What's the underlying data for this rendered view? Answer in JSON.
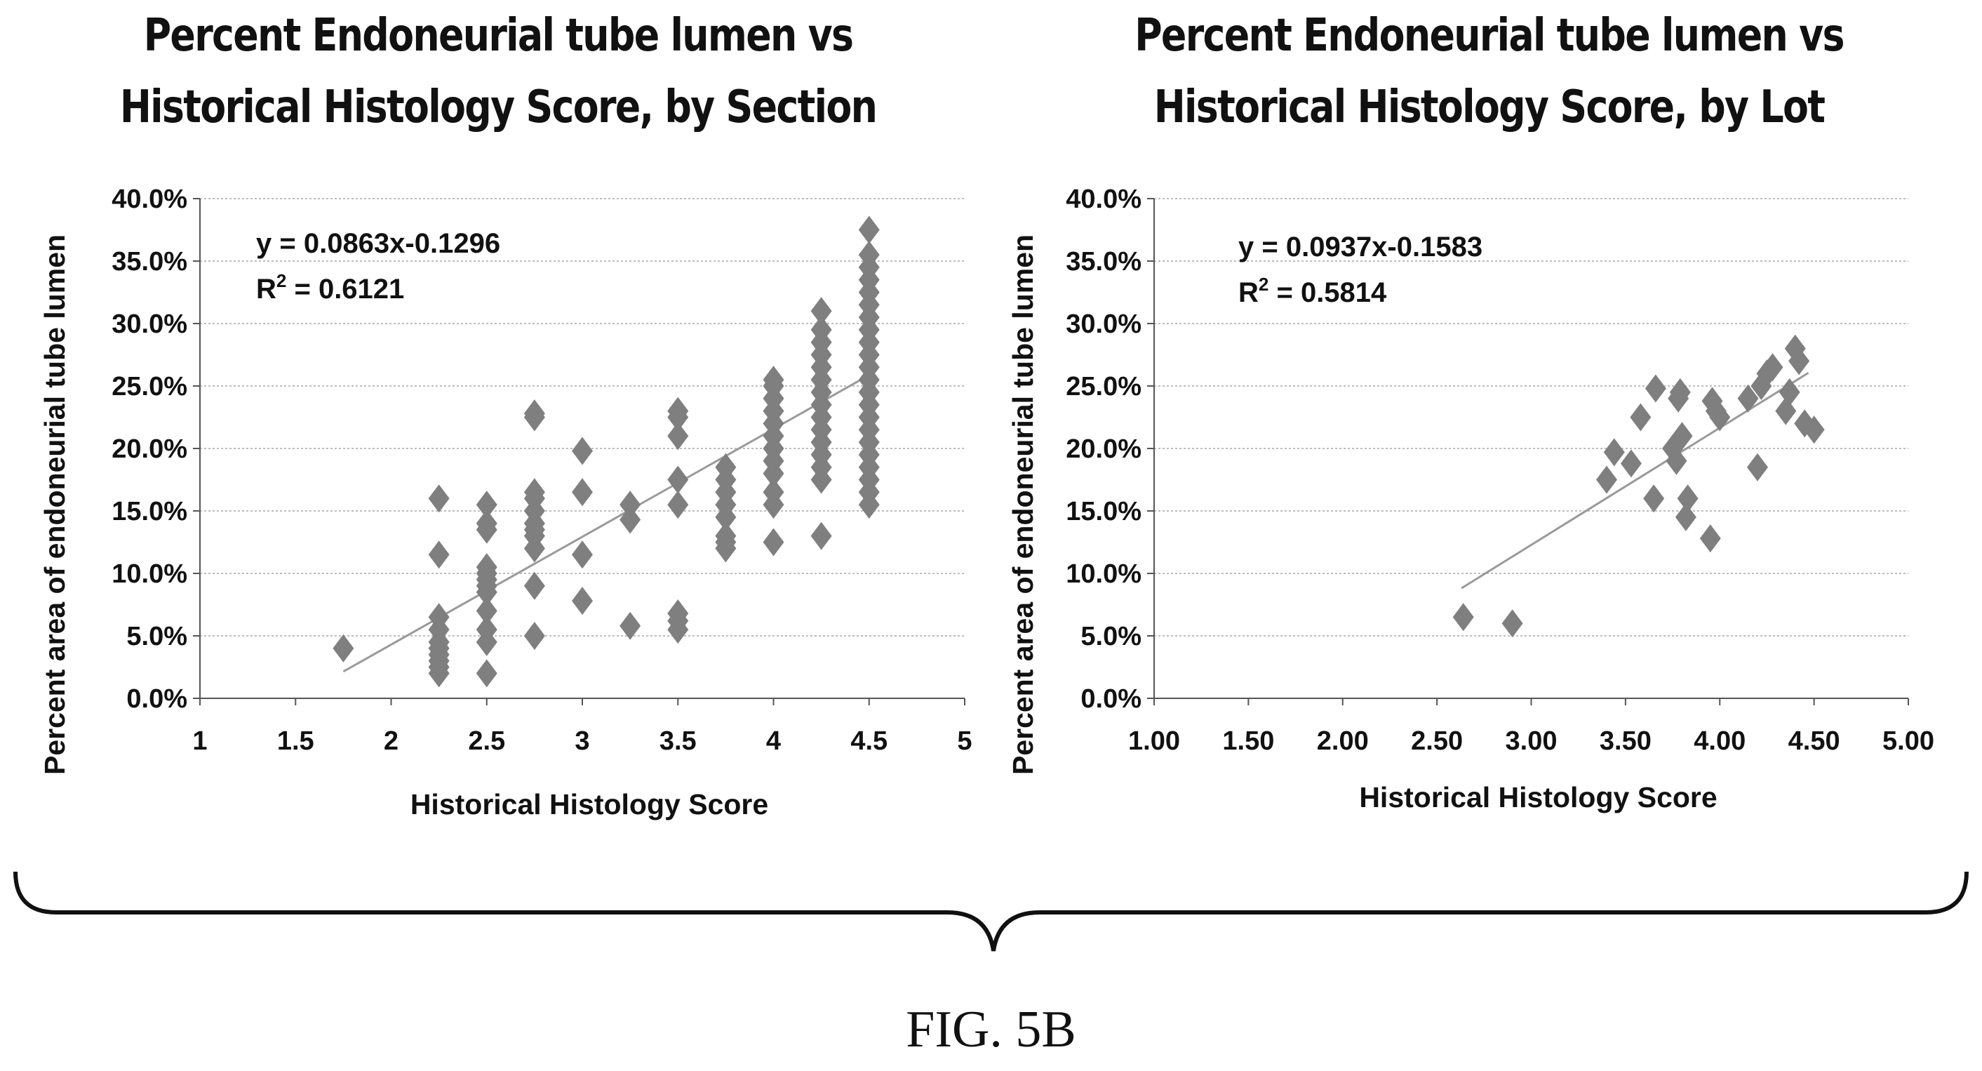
{
  "figure_label": "FIG. 5B",
  "colors": {
    "marker": "#7f7f7f",
    "trendline": "#9a9a9a",
    "grid": "#bdbdbd",
    "axis": "#555555",
    "text": "#111111"
  },
  "chart_data": [
    {
      "type": "scatter",
      "title_lines": [
        "Percent Endoneurial tube lumen vs",
        "Historical Histology Score, by Section"
      ],
      "xlabel": "Historical Histology Score",
      "ylabel": "Percent area of endoneurial tube lumen",
      "xlim": [
        1,
        5
      ],
      "ylim": [
        0,
        0.4
      ],
      "x_ticks": [
        1,
        1.5,
        2,
        2.5,
        3,
        3.5,
        4,
        4.5,
        5
      ],
      "x_tick_labels": [
        "1",
        "1.5",
        "2",
        "2.5",
        "3",
        "3.5",
        "4",
        "4.5",
        "5"
      ],
      "y_ticks": [
        0,
        0.05,
        0.1,
        0.15,
        0.2,
        0.25,
        0.3,
        0.35,
        0.4
      ],
      "y_tick_labels": [
        "0.0%",
        "5.0%",
        "10.0%",
        "15.0%",
        "20.0%",
        "25.0%",
        "30.0%",
        "35.0%",
        "40.0%"
      ],
      "grid": "horizontal",
      "equation": "y = 0.0863x-0.1296",
      "r2_prefix": "R",
      "r2_sup": "2",
      "r2_value": " = 0.6121",
      "trendline": {
        "slope": 0.0863,
        "intercept": -0.1296,
        "x_range": [
          1.75,
          4.5
        ]
      },
      "points": [
        [
          1.75,
          0.04
        ],
        [
          2.25,
          0.02
        ],
        [
          2.25,
          0.025
        ],
        [
          2.25,
          0.03
        ],
        [
          2.25,
          0.035
        ],
        [
          2.25,
          0.04
        ],
        [
          2.25,
          0.045
        ],
        [
          2.25,
          0.055
        ],
        [
          2.25,
          0.065
        ],
        [
          2.25,
          0.115
        ],
        [
          2.25,
          0.16
        ],
        [
          2.5,
          0.02
        ],
        [
          2.5,
          0.045
        ],
        [
          2.5,
          0.055
        ],
        [
          2.5,
          0.07
        ],
        [
          2.5,
          0.085
        ],
        [
          2.5,
          0.09
        ],
        [
          2.5,
          0.095
        ],
        [
          2.5,
          0.1
        ],
        [
          2.5,
          0.105
        ],
        [
          2.5,
          0.135
        ],
        [
          2.5,
          0.14
        ],
        [
          2.5,
          0.155
        ],
        [
          2.75,
          0.05
        ],
        [
          2.75,
          0.09
        ],
        [
          2.75,
          0.12
        ],
        [
          2.75,
          0.13
        ],
        [
          2.75,
          0.135
        ],
        [
          2.75,
          0.14
        ],
        [
          2.75,
          0.15
        ],
        [
          2.75,
          0.16
        ],
        [
          2.75,
          0.165
        ],
        [
          2.75,
          0.225
        ],
        [
          2.75,
          0.228
        ],
        [
          3.0,
          0.078
        ],
        [
          3.0,
          0.115
        ],
        [
          3.0,
          0.165
        ],
        [
          3.0,
          0.198
        ],
        [
          3.25,
          0.058
        ],
        [
          3.25,
          0.143
        ],
        [
          3.25,
          0.155
        ],
        [
          3.5,
          0.055
        ],
        [
          3.5,
          0.062
        ],
        [
          3.5,
          0.068
        ],
        [
          3.5,
          0.155
        ],
        [
          3.5,
          0.175
        ],
        [
          3.5,
          0.21
        ],
        [
          3.5,
          0.225
        ],
        [
          3.5,
          0.23
        ],
        [
          3.75,
          0.12
        ],
        [
          3.75,
          0.125
        ],
        [
          3.75,
          0.13
        ],
        [
          3.75,
          0.145
        ],
        [
          3.75,
          0.155
        ],
        [
          3.75,
          0.165
        ],
        [
          3.75,
          0.175
        ],
        [
          3.75,
          0.185
        ],
        [
          4.0,
          0.125
        ],
        [
          4.0,
          0.155
        ],
        [
          4.0,
          0.165
        ],
        [
          4.0,
          0.18
        ],
        [
          4.0,
          0.19
        ],
        [
          4.0,
          0.2
        ],
        [
          4.0,
          0.21
        ],
        [
          4.0,
          0.22
        ],
        [
          4.0,
          0.23
        ],
        [
          4.0,
          0.24
        ],
        [
          4.0,
          0.25
        ],
        [
          4.0,
          0.255
        ],
        [
          4.25,
          0.13
        ],
        [
          4.25,
          0.175
        ],
        [
          4.25,
          0.185
        ],
        [
          4.25,
          0.195
        ],
        [
          4.25,
          0.205
        ],
        [
          4.25,
          0.215
        ],
        [
          4.25,
          0.225
        ],
        [
          4.25,
          0.235
        ],
        [
          4.25,
          0.245
        ],
        [
          4.25,
          0.255
        ],
        [
          4.25,
          0.265
        ],
        [
          4.25,
          0.275
        ],
        [
          4.25,
          0.285
        ],
        [
          4.25,
          0.295
        ],
        [
          4.25,
          0.31
        ],
        [
          4.5,
          0.155
        ],
        [
          4.5,
          0.165
        ],
        [
          4.5,
          0.175
        ],
        [
          4.5,
          0.185
        ],
        [
          4.5,
          0.195
        ],
        [
          4.5,
          0.205
        ],
        [
          4.5,
          0.215
        ],
        [
          4.5,
          0.225
        ],
        [
          4.5,
          0.235
        ],
        [
          4.5,
          0.245
        ],
        [
          4.5,
          0.255
        ],
        [
          4.5,
          0.265
        ],
        [
          4.5,
          0.275
        ],
        [
          4.5,
          0.285
        ],
        [
          4.5,
          0.295
        ],
        [
          4.5,
          0.305
        ],
        [
          4.5,
          0.315
        ],
        [
          4.5,
          0.325
        ],
        [
          4.5,
          0.335
        ],
        [
          4.5,
          0.345
        ],
        [
          4.5,
          0.355
        ],
        [
          4.5,
          0.375
        ]
      ]
    },
    {
      "type": "scatter",
      "title_lines": [
        "Percent Endoneurial tube lumen vs",
        "Historical Histology Score, by Lot"
      ],
      "xlabel": "Historical Histology Score",
      "ylabel": "Percent area of endoneurial tube lumen",
      "xlim": [
        1,
        5
      ],
      "ylim": [
        0,
        0.4
      ],
      "x_ticks": [
        1,
        1.5,
        2,
        2.5,
        3,
        3.5,
        4,
        4.5,
        5
      ],
      "x_tick_labels": [
        "1.00",
        "1.50",
        "2.00",
        "2.50",
        "3.00",
        "3.50",
        "4.00",
        "4.50",
        "5.00"
      ],
      "y_ticks": [
        0,
        0.05,
        0.1,
        0.15,
        0.2,
        0.25,
        0.3,
        0.35,
        0.4
      ],
      "y_tick_labels": [
        "0.0%",
        "5.0%",
        "10.0%",
        "15.0%",
        "20.0%",
        "25.0%",
        "30.0%",
        "35.0%",
        "40.0%"
      ],
      "grid": "horizontal",
      "equation": "y = 0.0937x-0.1583",
      "r2_prefix": "R",
      "r2_sup": "2",
      "r2_value": " = 0.5814",
      "trendline": {
        "slope": 0.0937,
        "intercept": -0.1583,
        "x_range": [
          2.63,
          4.47
        ]
      },
      "points": [
        [
          2.64,
          0.065
        ],
        [
          2.9,
          0.06
        ],
        [
          3.4,
          0.175
        ],
        [
          3.44,
          0.197
        ],
        [
          3.53,
          0.188
        ],
        [
          3.58,
          0.225
        ],
        [
          3.65,
          0.16
        ],
        [
          3.66,
          0.248
        ],
        [
          3.75,
          0.2
        ],
        [
          3.77,
          0.19
        ],
        [
          3.78,
          0.24
        ],
        [
          3.79,
          0.245
        ],
        [
          3.8,
          0.21
        ],
        [
          3.82,
          0.145
        ],
        [
          3.83,
          0.16
        ],
        [
          3.95,
          0.128
        ],
        [
          3.96,
          0.238
        ],
        [
          3.98,
          0.23
        ],
        [
          4.0,
          0.225
        ],
        [
          4.15,
          0.24
        ],
        [
          4.2,
          0.185
        ],
        [
          4.22,
          0.25
        ],
        [
          4.25,
          0.26
        ],
        [
          4.28,
          0.265
        ],
        [
          4.35,
          0.23
        ],
        [
          4.37,
          0.245
        ],
        [
          4.4,
          0.28
        ],
        [
          4.42,
          0.27
        ],
        [
          4.45,
          0.22
        ],
        [
          4.5,
          0.215
        ]
      ]
    }
  ]
}
